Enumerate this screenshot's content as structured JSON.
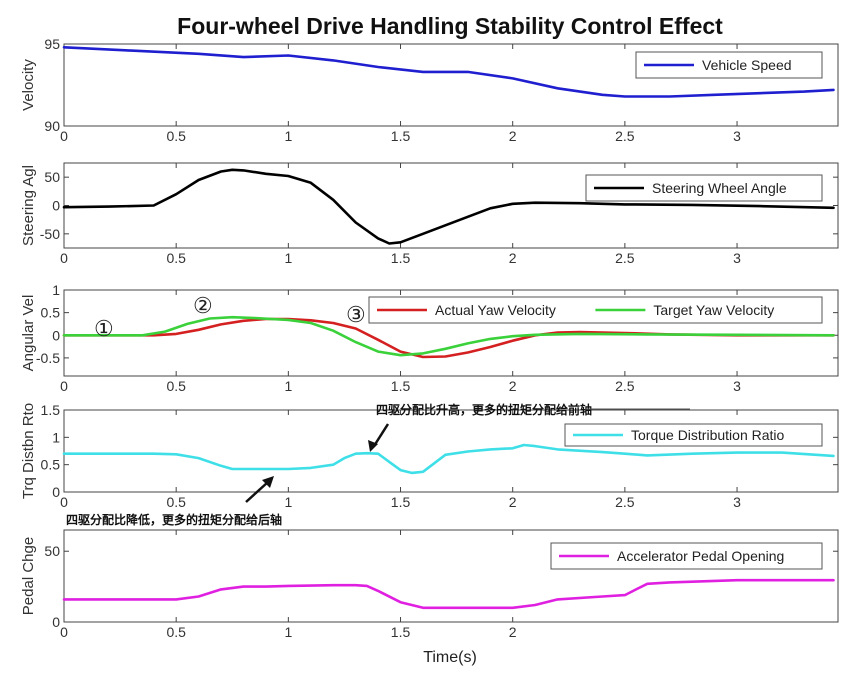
{
  "title": "Four-wheel Drive Handling Stability Control Effect",
  "xlabel": "Time(s)",
  "annotations": {
    "circle1": "①",
    "circle2": "②",
    "circle3": "③",
    "note_up": "四驱分配比升高，更多的扭矩分配给前轴",
    "note_down": "四驱分配比降低，更多的扭矩分配给后轴"
  },
  "chart_data": [
    {
      "type": "line",
      "ylabel": "Velocity",
      "xlim": [
        0,
        3.45
      ],
      "ylim": [
        90,
        95
      ],
      "xticks": [
        0,
        0.5,
        1,
        1.5,
        2,
        2.5,
        3
      ],
      "xtick_labels": [
        "0",
        "0.5",
        "1",
        "1.5",
        "2",
        "2.5",
        "3"
      ],
      "yticks": [
        90,
        95
      ],
      "ytick_labels": [
        "90",
        "95"
      ],
      "legend_position": "top-right",
      "series": [
        {
          "name": "Vehicle Speed",
          "color": "#1f1fd0",
          "x": [
            0,
            0.3,
            0.6,
            0.8,
            1.0,
            1.2,
            1.4,
            1.6,
            1.8,
            2.0,
            2.2,
            2.4,
            2.5,
            2.7,
            2.9,
            3.1,
            3.3,
            3.43
          ],
          "y": [
            94.8,
            94.6,
            94.4,
            94.2,
            94.3,
            94.0,
            93.6,
            93.3,
            93.3,
            92.9,
            92.3,
            91.9,
            91.8,
            91.8,
            91.9,
            92.0,
            92.1,
            92.2
          ]
        }
      ]
    },
    {
      "type": "line",
      "ylabel": "Steering Agl",
      "xlim": [
        0,
        3.45
      ],
      "ylim": [
        -75,
        75
      ],
      "xticks": [
        0,
        0.5,
        1,
        1.5,
        2,
        2.5,
        3
      ],
      "xtick_labels": [
        "0",
        "0.5",
        "1",
        "1.5",
        "2",
        "2.5",
        "3"
      ],
      "yticks": [
        -50,
        0,
        50
      ],
      "ytick_labels": [
        "-50",
        "0",
        "50"
      ],
      "legend_position": "top-right",
      "series": [
        {
          "name": "Steering Wheel Angle",
          "color": "#000000",
          "x": [
            0,
            0.2,
            0.4,
            0.5,
            0.6,
            0.7,
            0.75,
            0.8,
            0.9,
            1.0,
            1.1,
            1.2,
            1.3,
            1.4,
            1.45,
            1.5,
            1.6,
            1.7,
            1.8,
            1.9,
            2.0,
            2.1,
            2.3,
            2.5,
            2.8,
            3.1,
            3.43
          ],
          "y": [
            -3,
            -2,
            0,
            20,
            45,
            60,
            63,
            62,
            56,
            52,
            40,
            10,
            -30,
            -58,
            -67,
            -65,
            -50,
            -35,
            -20,
            -5,
            3,
            5,
            4,
            2,
            1,
            -1,
            -4
          ]
        }
      ]
    },
    {
      "type": "line",
      "ylabel": "Angular Vel",
      "xlim": [
        0,
        3.45
      ],
      "ylim": [
        -0.9,
        1.0
      ],
      "xticks": [
        0,
        0.5,
        1,
        1.5,
        2,
        2.5,
        3
      ],
      "xtick_labels": [
        "0",
        "0.5",
        "1",
        "1.5",
        "2",
        "2.5",
        "3"
      ],
      "yticks": [
        -0.5,
        0,
        0.5,
        1
      ],
      "ytick_labels": [
        "-0.5",
        "0",
        "0.5",
        "1"
      ],
      "legend_position": "top-right",
      "series": [
        {
          "name": "Actual Yaw Velocity",
          "color": "#d42020",
          "x": [
            0,
            0.4,
            0.5,
            0.6,
            0.7,
            0.8,
            0.9,
            1.0,
            1.1,
            1.2,
            1.3,
            1.4,
            1.5,
            1.6,
            1.7,
            1.8,
            1.9,
            2.0,
            2.1,
            2.2,
            2.3,
            2.5,
            2.7,
            3.0,
            3.43
          ],
          "y": [
            0,
            0,
            0.03,
            0.12,
            0.24,
            0.32,
            0.36,
            0.36,
            0.33,
            0.27,
            0.15,
            -0.1,
            -0.36,
            -0.48,
            -0.47,
            -0.38,
            -0.26,
            -0.12,
            0,
            0.06,
            0.07,
            0.05,
            0.02,
            0,
            0
          ]
        },
        {
          "name": "Target Yaw Velocity",
          "color": "#3ad13a",
          "x": [
            0,
            0.35,
            0.45,
            0.55,
            0.65,
            0.75,
            0.85,
            1.0,
            1.1,
            1.2,
            1.3,
            1.4,
            1.5,
            1.6,
            1.7,
            1.8,
            1.9,
            2.0,
            2.1,
            2.3,
            2.6,
            3.0,
            3.43
          ],
          "y": [
            0,
            0,
            0.08,
            0.25,
            0.37,
            0.4,
            0.38,
            0.34,
            0.27,
            0.1,
            -0.15,
            -0.36,
            -0.44,
            -0.4,
            -0.3,
            -0.18,
            -0.08,
            -0.02,
            0.01,
            0.03,
            0.02,
            0.01,
            0
          ]
        }
      ]
    },
    {
      "type": "line",
      "ylabel": "Trq Distbn Rto",
      "xlim": [
        0,
        3.45
      ],
      "ylim": [
        0,
        1.5
      ],
      "xticks": [
        0,
        0.5,
        1,
        1.5,
        2,
        2.5,
        3
      ],
      "xtick_labels": [
        "0",
        "0.5",
        "1",
        "1.5",
        "2",
        "2.5",
        "3"
      ],
      "yticks": [
        0,
        0.5,
        1,
        1.5
      ],
      "ytick_labels": [
        "0",
        "0.5",
        "1",
        "1.5"
      ],
      "legend_position": "top-right",
      "series": [
        {
          "name": "Torque Distribution Ratio",
          "color": "#3fdfe8",
          "x": [
            0,
            0.4,
            0.5,
            0.6,
            0.7,
            0.75,
            0.9,
            1.0,
            1.1,
            1.2,
            1.25,
            1.3,
            1.35,
            1.4,
            1.45,
            1.5,
            1.55,
            1.6,
            1.7,
            1.8,
            1.9,
            2.0,
            2.05,
            2.1,
            2.2,
            2.4,
            2.5,
            2.6,
            2.8,
            3.0,
            3.2,
            3.43
          ],
          "y": [
            0.7,
            0.7,
            0.69,
            0.62,
            0.48,
            0.42,
            0.42,
            0.42,
            0.44,
            0.5,
            0.62,
            0.7,
            0.71,
            0.7,
            0.55,
            0.4,
            0.35,
            0.37,
            0.68,
            0.74,
            0.78,
            0.8,
            0.86,
            0.84,
            0.78,
            0.73,
            0.7,
            0.67,
            0.7,
            0.72,
            0.72,
            0.66
          ]
        }
      ]
    },
    {
      "type": "line",
      "ylabel": "Pedal Chge",
      "xlim": [
        0,
        3.45
      ],
      "ylim": [
        0,
        65
      ],
      "xticks": [
        0,
        0.5,
        1,
        1.5,
        2
      ],
      "xtick_labels": [
        "0",
        "0.5",
        "1",
        "1.5",
        "2"
      ],
      "yticks": [
        0,
        50
      ],
      "ytick_labels": [
        "0",
        "50"
      ],
      "legend_position": "top-right",
      "series": [
        {
          "name": "Accelerator Pedal Opening",
          "color": "#e020e0",
          "x": [
            0,
            0.45,
            0.5,
            0.6,
            0.7,
            0.8,
            0.9,
            1.0,
            1.2,
            1.3,
            1.35,
            1.4,
            1.5,
            1.6,
            1.7,
            1.9,
            2.0,
            2.1,
            2.2,
            2.4,
            2.5,
            2.55,
            2.6,
            2.7,
            3.0,
            3.43
          ],
          "y": [
            16,
            16,
            16,
            18,
            23,
            25,
            25,
            25.5,
            26,
            26,
            25.5,
            22,
            14,
            10,
            10,
            10,
            10,
            12,
            16,
            18,
            19,
            23,
            27,
            28,
            29.5,
            29.5
          ]
        }
      ]
    }
  ]
}
